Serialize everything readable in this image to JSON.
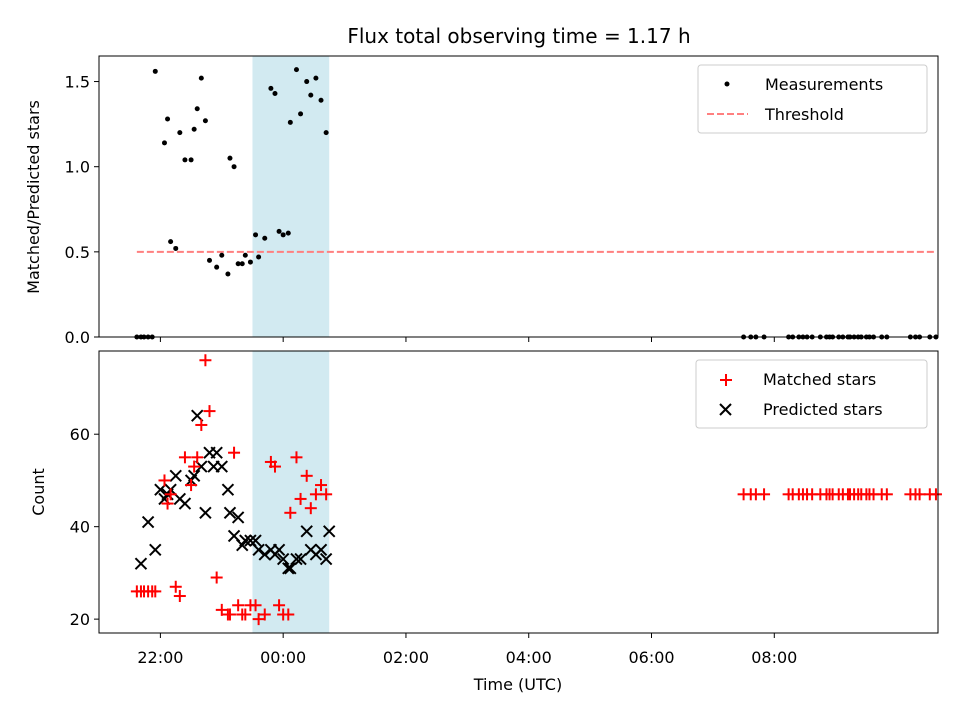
{
  "figure": {
    "title": "Flux total observing time = 1.17 h",
    "xlabel": "Time (UTC)"
  },
  "chart_data": [
    {
      "type": "scatter",
      "ylabel": "Matched/Predicted stars",
      "xlim": [
        "21:00",
        "10:40"
      ],
      "ylim": [
        0,
        1.65
      ],
      "yticks": [
        "0.0",
        "0.5",
        "1.0",
        "1.5"
      ],
      "shaded_region": {
        "x": [
          "23:30",
          "00:45"
        ],
        "color": "#add8e6"
      },
      "legend_position": "upper-right",
      "series": [
        {
          "name": "Measurements",
          "marker": "dot",
          "color": "#000000",
          "x": [
            "21:37",
            "21:41",
            "21:44",
            "21:48",
            "21:52",
            "21:55",
            "22:04",
            "22:07",
            "22:10",
            "22:15",
            "22:19",
            "22:24",
            "22:30",
            "22:33",
            "22:36",
            "22:40",
            "22:44",
            "22:48",
            "22:55",
            "23:00",
            "23:06",
            "23:08",
            "23:12",
            "23:16",
            "23:20",
            "23:23",
            "23:28",
            "23:33",
            "23:36",
            "23:42",
            "23:48",
            "23:52",
            "23:56",
            "00:00",
            "00:05",
            "00:07",
            "00:13",
            "00:17",
            "00:23",
            "00:27",
            "00:32",
            "00:37",
            "00:42",
            "07:30",
            "07:37",
            "07:42",
            "07:50",
            "08:14",
            "08:18",
            "08:24",
            "08:28",
            "08:32",
            "08:37",
            "08:45",
            "08:51",
            "08:54",
            "08:57",
            "09:03",
            "09:07",
            "09:12",
            "09:14",
            "09:18",
            "09:22",
            "09:25",
            "09:30",
            "09:33",
            "09:37",
            "09:45",
            "09:50",
            "10:13",
            "10:18",
            "10:22",
            "10:32",
            "10:38"
          ],
          "y": [
            0,
            0,
            0,
            0,
            0,
            1.56,
            1.14,
            1.28,
            0.56,
            0.52,
            1.2,
            1.04,
            1.04,
            1.22,
            1.34,
            1.52,
            1.27,
            0.45,
            0.41,
            0.48,
            0.37,
            1.05,
            1.0,
            0.43,
            0.43,
            0.48,
            0.44,
            0.6,
            0.47,
            0.58,
            1.46,
            1.43,
            0.62,
            0.6,
            0.61,
            1.26,
            1.57,
            1.31,
            1.5,
            1.42,
            1.52,
            1.39,
            1.2,
            0,
            0,
            0,
            0,
            0,
            0,
            0,
            0,
            0,
            0,
            0,
            0,
            0,
            0,
            0,
            0,
            0,
            0,
            0,
            0,
            0,
            0,
            0,
            0,
            0,
            0,
            0,
            0,
            0,
            0,
            0
          ]
        },
        {
          "name": "Threshold",
          "marker": "dashed-line",
          "color": "#ff7f7f",
          "x": [
            "21:37",
            "10:38"
          ],
          "y": [
            0.5,
            0.5
          ]
        }
      ]
    },
    {
      "type": "scatter",
      "ylabel": "Count",
      "xlabel": "Time (UTC)",
      "xlim": [
        "21:00",
        "10:40"
      ],
      "ylim": [
        17,
        78
      ],
      "yticks": [
        "20",
        "40",
        "60"
      ],
      "xticks": [
        "22:00",
        "00:00",
        "02:00",
        "04:00",
        "06:00",
        "08:00"
      ],
      "shaded_region": {
        "x": [
          "23:30",
          "00:45"
        ],
        "color": "#add8e6"
      },
      "legend_position": "upper-right",
      "series": [
        {
          "name": "Matched stars",
          "marker": "plus",
          "color": "#ff0000",
          "x": [
            "21:37",
            "21:41",
            "21:44",
            "21:48",
            "21:52",
            "21:55",
            "22:04",
            "22:07",
            "22:10",
            "22:15",
            "22:19",
            "22:24",
            "22:30",
            "22:33",
            "22:36",
            "22:40",
            "22:44",
            "22:48",
            "22:55",
            "23:00",
            "23:06",
            "23:08",
            "23:12",
            "23:16",
            "23:20",
            "23:23",
            "23:28",
            "23:33",
            "23:36",
            "23:42",
            "23:48",
            "23:52",
            "23:56",
            "00:00",
            "00:05",
            "00:07",
            "00:13",
            "00:17",
            "00:23",
            "00:27",
            "00:32",
            "00:37",
            "00:42",
            "07:30",
            "07:37",
            "07:42",
            "07:50",
            "08:14",
            "08:18",
            "08:24",
            "08:28",
            "08:32",
            "08:37",
            "08:45",
            "08:51",
            "08:54",
            "08:57",
            "09:03",
            "09:07",
            "09:12",
            "09:14",
            "09:18",
            "09:22",
            "09:25",
            "09:30",
            "09:33",
            "09:37",
            "09:45",
            "09:50",
            "10:13",
            "10:18",
            "10:22",
            "10:32",
            "10:38"
          ],
          "y": [
            26,
            26,
            26,
            26,
            26,
            26,
            50,
            45,
            47,
            27,
            25,
            55,
            49,
            53,
            55,
            62,
            76,
            65,
            29,
            22,
            21,
            21,
            56,
            23,
            21,
            21,
            23,
            23,
            20,
            21,
            54,
            53,
            23,
            21,
            21,
            43,
            55,
            46,
            51,
            44,
            47,
            49,
            47,
            47,
            47,
            47,
            47,
            47,
            47,
            47,
            47,
            47,
            47,
            47,
            47,
            47,
            47,
            47,
            47,
            47,
            47,
            47,
            47,
            47,
            47,
            47,
            47,
            47,
            47,
            47,
            47,
            47,
            47,
            47
          ]
        },
        {
          "name": "Predicted stars",
          "marker": "x",
          "color": "#000000",
          "x": [
            "21:41",
            "21:48",
            "21:55",
            "22:00",
            "22:04",
            "22:07",
            "22:10",
            "22:15",
            "22:19",
            "22:24",
            "22:30",
            "22:33",
            "22:36",
            "22:40",
            "22:44",
            "22:48",
            "22:52",
            "22:55",
            "23:00",
            "23:06",
            "23:08",
            "23:12",
            "23:16",
            "23:20",
            "23:23",
            "23:28",
            "23:33",
            "23:36",
            "23:42",
            "23:48",
            "23:52",
            "23:56",
            "00:00",
            "00:05",
            "00:07",
            "00:13",
            "00:17",
            "00:23",
            "00:27",
            "00:32",
            "00:37",
            "00:42",
            "00:45"
          ],
          "y": [
            32,
            41,
            35,
            48,
            46,
            47,
            48,
            51,
            46,
            45,
            50,
            51,
            64,
            53,
            43,
            56,
            53,
            56,
            53,
            48,
            43,
            38,
            42,
            36,
            37,
            37,
            37,
            35,
            34,
            35,
            34,
            35,
            33,
            31,
            31,
            33,
            33,
            39,
            35,
            34,
            35,
            33,
            39
          ]
        }
      ]
    }
  ]
}
